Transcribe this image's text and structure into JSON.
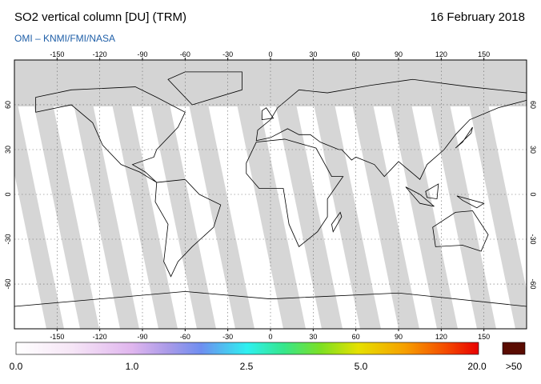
{
  "header": {
    "title": "SO2 vertical column [DU] (TRM)",
    "source": "OMI  –  KNMI/FMI/NASA",
    "date": "16 February 2018"
  },
  "map": {
    "lon_ticks": [
      -150,
      -120,
      -90,
      -60,
      -30,
      0,
      30,
      60,
      90,
      120,
      150
    ],
    "lat_ticks": [
      60,
      30,
      0,
      -30,
      -60
    ]
  },
  "colorbar": {
    "labels": [
      "0.0",
      "1.0",
      "2.5",
      "5.0",
      "20.0",
      ">50"
    ]
  }
}
